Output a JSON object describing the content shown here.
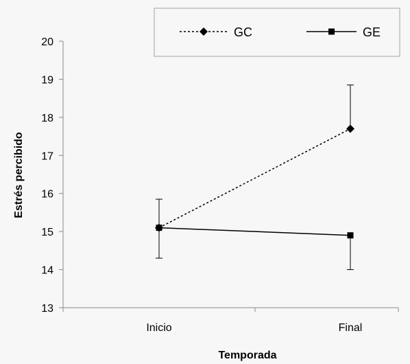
{
  "chart_data": {
    "type": "line",
    "title": "",
    "xlabel": "Temporada",
    "ylabel": "Estrés percibido",
    "categories": [
      "Inicio",
      "Final"
    ],
    "ylim": [
      13,
      20
    ],
    "yticks": [
      "13",
      "14",
      "15",
      "16",
      "17",
      "18",
      "19",
      "20"
    ],
    "grid": false,
    "legend_position": "top",
    "series": [
      {
        "name": "GC",
        "values": [
          15.1,
          17.7
        ],
        "error_low": [
          14.3,
          null
        ],
        "error_high": [
          15.85,
          18.85
        ],
        "marker": "diamond",
        "line_style": "dotted",
        "color": "#000000"
      },
      {
        "name": "GE",
        "values": [
          15.1,
          14.9
        ],
        "error_low": [
          null,
          14.0
        ],
        "error_high": [
          null,
          null
        ],
        "marker": "square",
        "line_style": "solid",
        "color": "#000000"
      }
    ]
  }
}
